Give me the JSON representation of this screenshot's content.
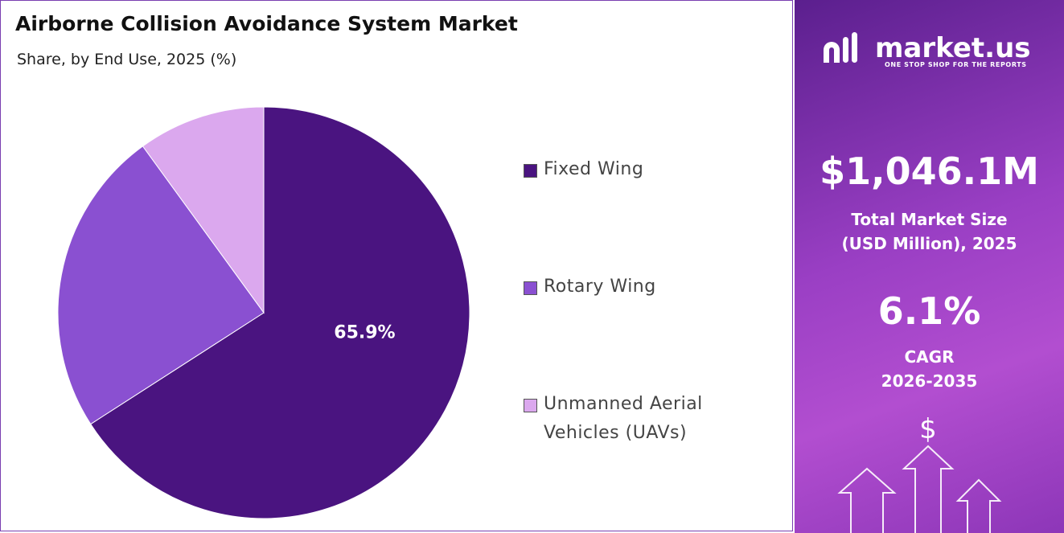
{
  "chart_data": {
    "type": "pie",
    "title": "Airborne Collision Avoidance System Market",
    "subtitle": "Share, by End Use, 2025 (%)",
    "categories": [
      "Fixed Wing",
      "Rotary Wing",
      "Unmanned Aerial Vehicles (UAVs)"
    ],
    "values": [
      65.9,
      24.1,
      10.0
    ],
    "value_labels": [
      "65.9%",
      null,
      null
    ],
    "colors": [
      "#4a1480",
      "#8a50d1",
      "#dba8ee"
    ]
  },
  "side_panel": {
    "brand": "market.us",
    "tagline": "ONE STOP SHOP FOR THE REPORTS",
    "market_size": "$1,046.1M",
    "market_size_label": "Total Market Size (USD Million), 2025",
    "cagr": "6.1%",
    "cagr_label": "CAGR",
    "cagr_period": "2026-2035"
  }
}
